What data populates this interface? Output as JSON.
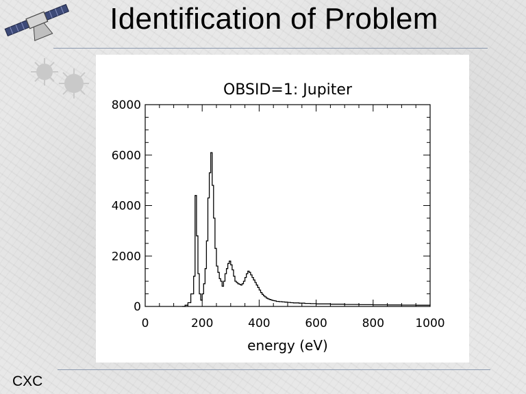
{
  "slide": {
    "title": "Identification of Problem",
    "footer_label": "CXC"
  },
  "icons": [
    "satellite-icon"
  ],
  "colors": {
    "background": "#e6e6e6",
    "rule": "#8a98ae",
    "panel": "#ffffff",
    "ink": "#000000"
  },
  "chart_data": {
    "type": "line",
    "style": "step",
    "title": "OBSID=1: Jupiter",
    "xlabel": "energy (eV)",
    "ylabel": "",
    "xlim": [
      0,
      1000
    ],
    "ylim": [
      0,
      8000
    ],
    "xticks": [
      0,
      200,
      400,
      600,
      800,
      1000
    ],
    "xtick_labels": [
      "0",
      "200",
      "400",
      "600",
      "800",
      "1000"
    ],
    "yticks": [
      0,
      2000,
      4000,
      6000,
      8000
    ],
    "ytick_labels": [
      "0",
      "2000",
      "4000",
      "6000",
      "8000"
    ],
    "grid": false,
    "series": [
      {
        "x": [
          130,
          140,
          150,
          160,
          170,
          175,
          180,
          185,
          190,
          195,
          200,
          205,
          210,
          215,
          220,
          225,
          230,
          235,
          240,
          245,
          250,
          255,
          260,
          265,
          270,
          275,
          280,
          285,
          290,
          295,
          300,
          305,
          310,
          315,
          320,
          325,
          330,
          335,
          340,
          345,
          350,
          355,
          360,
          365,
          370,
          375,
          380,
          385,
          390,
          395,
          400,
          405,
          410,
          415,
          420,
          425,
          430,
          435,
          440,
          445,
          450,
          455,
          460,
          470,
          480,
          490,
          500,
          510,
          520,
          540,
          560,
          580,
          600,
          650,
          700,
          750,
          800,
          850,
          900,
          950,
          1000
        ],
        "y": [
          0,
          50,
          150,
          500,
          1200,
          4400,
          2800,
          1300,
          500,
          250,
          500,
          900,
          1500,
          2600,
          4300,
          5300,
          6100,
          4800,
          3500,
          2300,
          1600,
          1350,
          1100,
          1000,
          800,
          1000,
          1300,
          1500,
          1700,
          1800,
          1650,
          1450,
          1200,
          1000,
          950,
          900,
          880,
          850,
          900,
          1000,
          1150,
          1300,
          1400,
          1350,
          1250,
          1150,
          1050,
          950,
          850,
          750,
          650,
          550,
          480,
          420,
          380,
          330,
          300,
          280,
          260,
          240,
          230,
          220,
          200,
          190,
          180,
          170,
          160,
          150,
          140,
          130,
          120,
          110,
          100,
          90,
          80,
          70,
          65,
          60,
          55,
          50,
          45
        ]
      }
    ]
  }
}
